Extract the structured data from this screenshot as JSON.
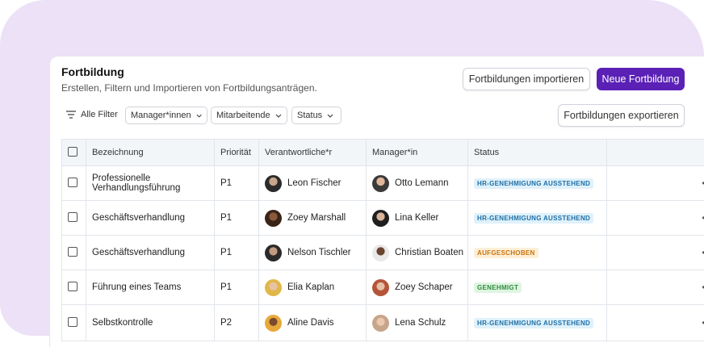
{
  "page": {
    "title": "Fortbildung",
    "subtitle": "Erstellen, Filtern und Importieren von Fortbildungsanträgen."
  },
  "actions": {
    "import_label": "Fortbildungen importieren",
    "new_label": "Neue Fortbildung",
    "export_label": "Fortbildungen exportieren"
  },
  "filters": {
    "all_label": "Alle Filter",
    "managers_label": "Manager*innen",
    "employees_label": "Mitarbeitende",
    "status_label": "Status"
  },
  "table": {
    "headers": [
      "Bezeichnung",
      "Priorität",
      "Verantwortliche*r",
      "Manager*in",
      "Status"
    ],
    "rows": [
      {
        "name": "Professionelle Verhandlungsführung",
        "priority": "P1",
        "owner": "Leon Fischer",
        "manager": "Otto Lemann",
        "status": "HR-GENEHMIGUNG AUSSTEHEND",
        "status_color": "blue"
      },
      {
        "name": "Geschäftsverhandlung",
        "priority": "P1",
        "owner": "Zoey Marshall",
        "manager": "Lina Keller",
        "status": "HR-GENEHMIGUNG AUSSTEHEND",
        "status_color": "blue"
      },
      {
        "name": "Geschäftsverhandlung",
        "priority": "P1",
        "owner": "Nelson Tischler",
        "manager": "Christian Boaten",
        "status": "AUFGESCHOBEN",
        "status_color": "orange"
      },
      {
        "name": "Führung eines Teams",
        "priority": "P1",
        "owner": "Elia Kaplan",
        "manager": "Zoey Schaper",
        "status": "GENEHMIGT",
        "status_color": "green"
      },
      {
        "name": "Selbstkontrolle",
        "priority": "P2",
        "owner": "Aline Davis",
        "manager": "Lena Schulz",
        "status": "HR-GENEHMIGUNG AUSSTEHEND",
        "status_color": "blue"
      }
    ],
    "row_action_icon": "more-horizontal-icon"
  },
  "colors": {
    "primary": "#5b21b6",
    "background_blob": "#ece1f6"
  }
}
